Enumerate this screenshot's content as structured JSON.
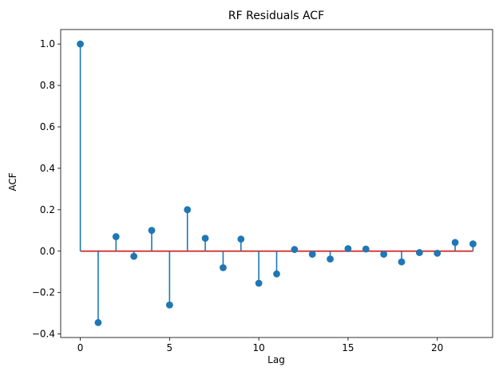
{
  "chart_data": {
    "type": "stem",
    "title": "RF Residuals ACF",
    "xlabel": "Lag",
    "ylabel": "ACF",
    "x": [
      0,
      1,
      2,
      3,
      4,
      5,
      6,
      7,
      8,
      9,
      10,
      11,
      12,
      13,
      14,
      15,
      16,
      17,
      18,
      19,
      20,
      21,
      22
    ],
    "values": [
      1.0,
      -0.345,
      0.07,
      -0.025,
      0.1,
      -0.26,
      0.2,
      0.062,
      -0.08,
      0.058,
      -0.155,
      -0.11,
      0.008,
      -0.015,
      -0.038,
      0.012,
      0.01,
      -0.015,
      -0.052,
      -0.007,
      -0.01,
      0.042,
      0.035
    ],
    "xlim": [
      -1.1,
      23.1
    ],
    "ylim": [
      -0.417,
      1.07
    ],
    "xticks": [
      0,
      5,
      10,
      15,
      20
    ],
    "xtick_labels": [
      "0",
      "5",
      "10",
      "15",
      "20"
    ],
    "yticks": [
      -0.4,
      -0.2,
      0.0,
      0.2,
      0.4,
      0.6,
      0.8,
      1.0
    ],
    "ytick_labels": [
      "−0.4",
      "−0.2",
      "0.0",
      "0.2",
      "0.4",
      "0.6",
      "0.8",
      "1.0"
    ],
    "baseline": 0,
    "grid": false,
    "colors": {
      "stem": "#1f77b4",
      "marker": "#1f77b4",
      "baseline": "#d62728",
      "axes": "#000000"
    }
  }
}
